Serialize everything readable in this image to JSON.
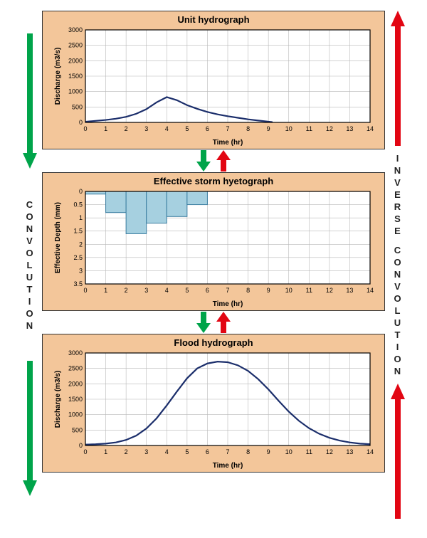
{
  "layout": {
    "panel_bg": "#f3c69a",
    "panel_border": "#333333",
    "chart_bg": "#ffffff",
    "grid_color": "#b8b8b8",
    "axis_color": "#000000",
    "line_color": "#1b2e6b",
    "bar_fill": "#a6d0e0",
    "bar_stroke": "#3a7ca0",
    "green_arrow": "#00a44a",
    "red_arrow": "#e20613"
  },
  "left_label": "CONVOLUTION",
  "right_label_line1": "INVERSE",
  "right_label_line2": "CONVOLUTION",
  "chart1": {
    "title": "Unit hydrograph",
    "type": "line",
    "xlabel": "Time (hr)",
    "ylabel": "Discharge (m3/s)",
    "xlim": [
      0,
      14
    ],
    "xtick_step": 1,
    "ylim": [
      0,
      3000
    ],
    "ytick_step": 500,
    "title_fontsize": 13,
    "label_fontsize": 10,
    "tick_fontsize": 9,
    "line_width": 2.2,
    "points": [
      [
        0,
        20
      ],
      [
        0.5,
        50
      ],
      [
        1,
        80
      ],
      [
        1.5,
        120
      ],
      [
        2,
        180
      ],
      [
        2.5,
        280
      ],
      [
        3,
        430
      ],
      [
        3.5,
        650
      ],
      [
        4,
        820
      ],
      [
        4.5,
        720
      ],
      [
        5,
        560
      ],
      [
        5.5,
        440
      ],
      [
        6,
        340
      ],
      [
        6.5,
        260
      ],
      [
        7,
        200
      ],
      [
        7.5,
        150
      ],
      [
        8,
        100
      ],
      [
        8.5,
        60
      ],
      [
        9,
        25
      ],
      [
        9.2,
        10
      ]
    ]
  },
  "chart2": {
    "title": "Effective storm hyetograph",
    "type": "bar-inverted",
    "xlabel": "Time (hr)",
    "ylabel": "Effective Depth (mm)",
    "xlim": [
      0,
      14
    ],
    "xtick_step": 1,
    "ylim": [
      0,
      3.5
    ],
    "ytick_step": 0.5,
    "title_fontsize": 13,
    "label_fontsize": 10,
    "tick_fontsize": 9,
    "bars": [
      {
        "x": 0,
        "width": 1,
        "value": 0.1
      },
      {
        "x": 1,
        "width": 1,
        "value": 0.8
      },
      {
        "x": 2,
        "width": 1,
        "value": 1.6
      },
      {
        "x": 3,
        "width": 1,
        "value": 1.2
      },
      {
        "x": 4,
        "width": 1,
        "value": 0.95
      },
      {
        "x": 5,
        "width": 1,
        "value": 0.5
      }
    ]
  },
  "chart3": {
    "title": "Flood hydrograph",
    "type": "line",
    "xlabel": "Time (hr)",
    "ylabel": "Discharge (m3/s)",
    "xlim": [
      0,
      14
    ],
    "xtick_step": 1,
    "ylim": [
      0,
      3000
    ],
    "ytick_step": 500,
    "title_fontsize": 13,
    "label_fontsize": 10,
    "tick_fontsize": 9,
    "line_width": 2.2,
    "points": [
      [
        0,
        30
      ],
      [
        0.5,
        40
      ],
      [
        1,
        60
      ],
      [
        1.5,
        100
      ],
      [
        2,
        180
      ],
      [
        2.5,
        320
      ],
      [
        3,
        550
      ],
      [
        3.5,
        880
      ],
      [
        4,
        1300
      ],
      [
        4.5,
        1750
      ],
      [
        5,
        2180
      ],
      [
        5.5,
        2500
      ],
      [
        6,
        2660
      ],
      [
        6.5,
        2720
      ],
      [
        7,
        2700
      ],
      [
        7.5,
        2600
      ],
      [
        8,
        2420
      ],
      [
        8.5,
        2150
      ],
      [
        9,
        1820
      ],
      [
        9.5,
        1450
      ],
      [
        10,
        1100
      ],
      [
        10.5,
        800
      ],
      [
        11,
        560
      ],
      [
        11.5,
        380
      ],
      [
        12,
        250
      ],
      [
        12.5,
        160
      ],
      [
        13,
        100
      ],
      [
        13.5,
        60
      ],
      [
        14,
        40
      ]
    ]
  }
}
